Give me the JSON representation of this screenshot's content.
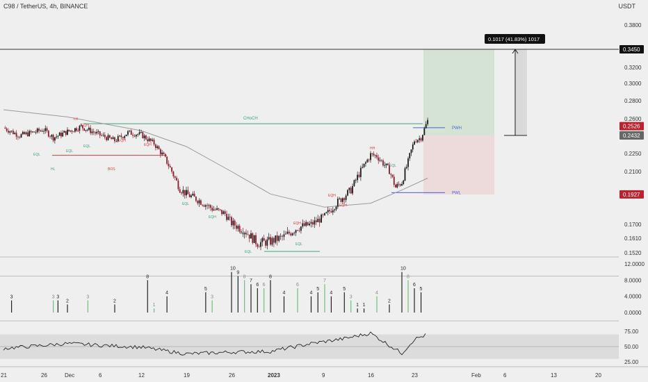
{
  "header": {
    "symbol_line": "C98 / TetherUS, 4h, BINANCE",
    "unit": "USDT"
  },
  "colors": {
    "bg": "#efefef",
    "up": "#1a1a1a",
    "down": "#8b1a2a",
    "green_ind": "#6fbf78",
    "choch": "#3aa37a",
    "bos": "#d93a3a",
    "pw": "#4a5fd8",
    "tp_zone": "#cfe1cf",
    "sl_zone": "#ecd6d6",
    "ma": "#9a9a9a",
    "badge_red": "#b8232f",
    "badge_dark": "#555555"
  },
  "chart_data": [
    {
      "type": "line",
      "title": "",
      "price_scale": {
        "ticks": [
          "0.3800",
          "0.3450",
          "0.3200",
          "0.3000",
          "0.2800",
          "0.2600",
          "0.2526",
          "0.2432",
          "0.2250",
          "0.2100",
          "0.1927",
          "0.1700",
          "0.1610",
          "0.1520"
        ],
        "ylim": [
          0.15,
          0.39
        ]
      },
      "x_ticks": [
        "21",
        "26",
        "Dec",
        "6",
        "12",
        "19",
        "26",
        "2023",
        "9",
        "16",
        "23",
        "Feb",
        "6",
        "13",
        "20"
      ],
      "price_series": {
        "name": "",
        "x": [
          "2022-11-21",
          "2022-11-23",
          "2022-11-26",
          "2022-11-28",
          "2022-12-01",
          "2022-12-03",
          "2022-12-06",
          "2022-12-08",
          "2022-12-10",
          "2022-12-12",
          "2022-12-14",
          "2022-12-16",
          "2022-12-18",
          "2022-12-19",
          "2022-12-21",
          "2022-12-23",
          "2022-12-25",
          "2022-12-26",
          "2022-12-28",
          "2022-12-30",
          "2023-01-01",
          "2023-01-03",
          "2023-01-05",
          "2023-01-07",
          "2023-01-09",
          "2023-01-11",
          "2023-01-13",
          "2023-01-14",
          "2023-01-16",
          "2023-01-17",
          "2023-01-19",
          "2023-01-20",
          "2023-01-21",
          "2023-01-22",
          "2023-01-23",
          "2023-01-24",
          "2023-01-25"
        ],
        "values": [
          0.251,
          0.243,
          0.249,
          0.241,
          0.247,
          0.252,
          0.243,
          0.238,
          0.246,
          0.244,
          0.235,
          0.218,
          0.197,
          0.193,
          0.188,
          0.182,
          0.178,
          0.171,
          0.166,
          0.158,
          0.159,
          0.162,
          0.168,
          0.17,
          0.176,
          0.187,
          0.196,
          0.206,
          0.224,
          0.223,
          0.211,
          0.198,
          0.202,
          0.218,
          0.238,
          0.241,
          0.258
        ]
      },
      "moving_average": {
        "x": [
          "2022-11-21",
          "2022-12-01",
          "2022-12-12",
          "2022-12-19",
          "2022-12-26",
          "2023-01-01",
          "2023-01-09",
          "2023-01-16",
          "2023-01-21",
          "2023-01-25"
        ],
        "values": [
          0.27,
          0.262,
          0.248,
          0.232,
          0.21,
          0.193,
          0.183,
          0.186,
          0.196,
          0.205
        ]
      },
      "levels": [
        {
          "label": "CHoCH",
          "value": 0.255
        },
        {
          "label": "PWH",
          "value": 0.251
        },
        {
          "label": "PWL",
          "value": 0.194
        },
        {
          "label": "BOS",
          "value": 0.2235
        },
        {
          "label": "",
          "value": 0.345
        }
      ],
      "structure_labels": [
        "LH",
        "EQH",
        "EQL",
        "EQL",
        "EQH",
        "HL",
        "BOS",
        "EQH",
        "EQL",
        "EQL",
        "EQH",
        "EQL",
        "EQH",
        "HH",
        "EQL",
        "EQH",
        "EQL",
        "EQH",
        "EQL"
      ],
      "position": {
        "entry": 0.2432,
        "target": 0.345,
        "stop": 0.1927,
        "measure_label": "0.1017 (41.83%) 1017"
      },
      "price_badges": [
        {
          "text": "0.3450",
          "style": "dark"
        },
        {
          "text": "0.2526",
          "style": "red"
        },
        {
          "text": "0.2432",
          "style": "grey"
        },
        {
          "text": "0.1927",
          "style": "red"
        }
      ]
    },
    {
      "type": "bar",
      "title": "",
      "ylim": [
        0,
        12
      ],
      "y_ticks": [
        "12.0000",
        "8.0000",
        "4.0000",
        "0.0000"
      ],
      "categories": [
        "2022-11-22",
        "2022-11-28",
        "2022-11-29",
        "2022-12-01",
        "2022-12-04",
        "2022-12-08",
        "2022-12-13",
        "2022-12-14",
        "2022-12-16",
        "2022-12-22",
        "2022-12-23",
        "2022-12-26",
        "2022-12-27",
        "2022-12-28",
        "2022-12-29",
        "2022-12-30",
        "2022-12-31",
        "2023-01-01",
        "2023-01-03",
        "2023-01-05",
        "2023-01-07",
        "2023-01-08",
        "2023-01-09",
        "2023-01-10",
        "2023-01-12",
        "2023-01-13",
        "2023-01-14",
        "2023-01-15",
        "2023-01-17",
        "2023-01-19",
        "2023-01-21",
        "2023-01-22",
        "2023-01-23",
        "2023-01-24"
      ],
      "series": [
        {
          "name": "",
          "values": [
            3,
            3,
            3,
            2,
            3,
            2,
            8,
            1,
            4,
            5,
            3,
            10,
            9,
            8,
            7,
            6,
            6,
            8,
            4,
            6,
            4,
            5,
            7,
            4,
            5,
            3,
            1,
            1,
            4,
            2,
            10,
            8,
            6,
            5
          ]
        }
      ],
      "bar_labels": [
        "3",
        "3",
        "3",
        "2",
        "3",
        "2",
        "8",
        "1",
        "4",
        "5",
        "3",
        "10",
        "9",
        "8",
        "7",
        "6",
        "6",
        "8",
        "4",
        "6",
        "4",
        "5",
        "7",
        "4",
        "5",
        "3",
        "1",
        "1",
        "4",
        "2",
        "10",
        "8",
        "6",
        "5"
      ]
    },
    {
      "type": "line",
      "title": "",
      "ylim": [
        20,
        85
      ],
      "y_ticks": [
        "75.00",
        "50.00",
        "25.00"
      ],
      "band": [
        30,
        70
      ],
      "series": [
        {
          "name": "",
          "x": [
            "2022-11-21",
            "2022-11-26",
            "2022-12-01",
            "2022-12-06",
            "2022-12-12",
            "2022-12-19",
            "2022-12-26",
            "2023-01-01",
            "2023-01-07",
            "2023-01-12",
            "2023-01-16",
            "2023-01-19",
            "2023-01-21",
            "2023-01-23",
            "2023-01-25"
          ],
          "values": [
            47,
            52,
            55,
            52,
            49,
            38,
            41,
            42,
            55,
            63,
            72,
            52,
            39,
            62,
            70
          ]
        }
      ]
    }
  ]
}
